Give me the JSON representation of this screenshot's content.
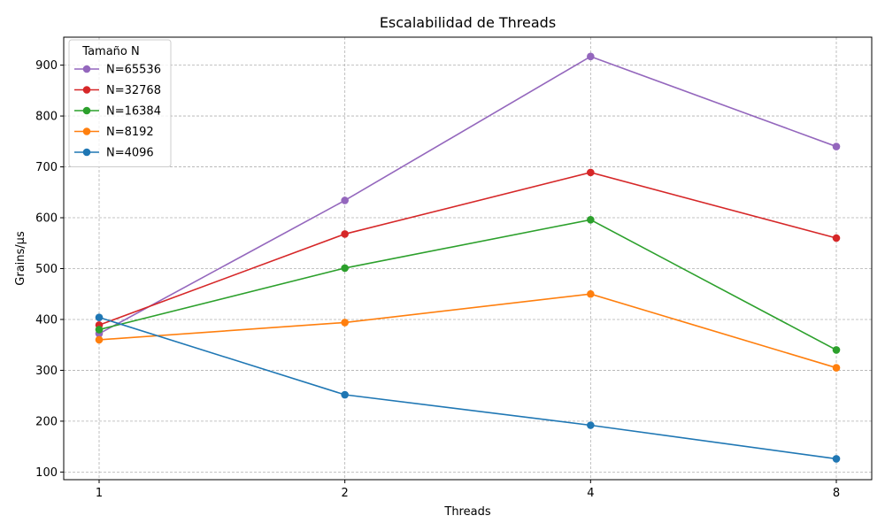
{
  "chart_data": {
    "type": "line",
    "title": "Escalabilidad de Threads",
    "xlabel": "Threads",
    "ylabel": "Grains/µs",
    "x": [
      1,
      2,
      4,
      8
    ],
    "x_tick_labels": [
      "1",
      "2",
      "4",
      "8"
    ],
    "y_ticks": [
      100,
      200,
      300,
      400,
      500,
      600,
      700,
      800,
      900
    ],
    "ylim": [
      85,
      955
    ],
    "grid": true,
    "legend": {
      "title": "Tamaño N",
      "placement": "top-left"
    },
    "series": [
      {
        "name": "N=65536",
        "color": "#9467bd",
        "values": [
          372,
          634,
          917,
          740
        ]
      },
      {
        "name": "N=32768",
        "color": "#d62728",
        "values": [
          389,
          568,
          689,
          560
        ]
      },
      {
        "name": "N=16384",
        "color": "#2ca02c",
        "values": [
          380,
          501,
          596,
          340
        ]
      },
      {
        "name": "N=8192",
        "color": "#ff7f0e",
        "values": [
          360,
          394,
          450,
          305
        ]
      },
      {
        "name": "N=4096",
        "color": "#1f77b4",
        "values": [
          404,
          252,
          192,
          126
        ]
      }
    ]
  }
}
